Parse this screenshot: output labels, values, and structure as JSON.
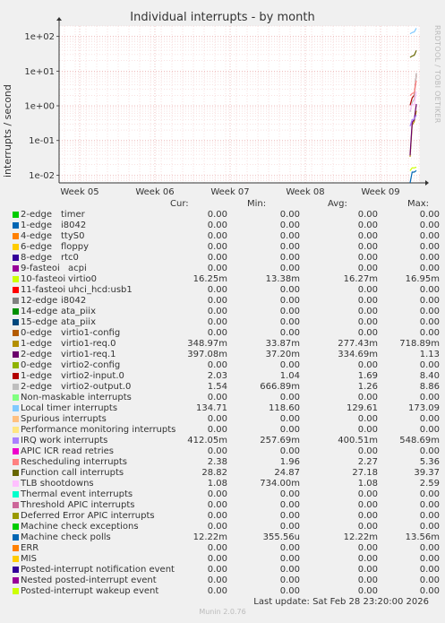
{
  "chart_data": {
    "type": "line",
    "title": "Individual interrupts - by month",
    "ylabel": "interrupts / second",
    "yscale": "log",
    "ylim": [
      0.006,
      200
    ],
    "yticks": [
      {
        "value": 100,
        "label": "1e+02"
      },
      {
        "value": 10,
        "label": "1e+01"
      },
      {
        "value": 1,
        "label": "1e+00"
      },
      {
        "value": 0.1,
        "label": "1e-01"
      },
      {
        "value": 0.01,
        "label": "1e-02"
      }
    ],
    "xticks": [
      "Week 05",
      "Week 06",
      "Week 07",
      "Week 08",
      "Week 09"
    ],
    "grid": true,
    "side_label": "RRDTOOL / TOBI OETIKER",
    "columns": [
      "Cur:",
      "Min:",
      "Avg:",
      "Max:"
    ],
    "series": [
      {
        "irq": "2-edge",
        "name": "timer",
        "color": "#00cc00",
        "cur": "0.00",
        "min": "0.00",
        "avg": "0.00",
        "max": "0.00"
      },
      {
        "irq": "1-edge",
        "name": "i8042",
        "color": "#0066b3",
        "cur": "0.00",
        "min": "0.00",
        "avg": "0.00",
        "max": "0.00"
      },
      {
        "irq": "4-edge",
        "name": "ttyS0",
        "color": "#ff8000",
        "cur": "0.00",
        "min": "0.00",
        "avg": "0.00",
        "max": "0.00"
      },
      {
        "irq": "6-edge",
        "name": "floppy",
        "color": "#ffcc00",
        "cur": "0.00",
        "min": "0.00",
        "avg": "0.00",
        "max": "0.00"
      },
      {
        "irq": "8-edge",
        "name": "rtc0",
        "color": "#330099",
        "cur": "0.00",
        "min": "0.00",
        "avg": "0.00",
        "max": "0.00"
      },
      {
        "irq": "9-fasteoi",
        "name": "acpi",
        "color": "#990099",
        "cur": "0.00",
        "min": "0.00",
        "avg": "0.00",
        "max": "0.00"
      },
      {
        "irq": "10-fasteoi",
        "name": "virtio0",
        "color": "#ccff00",
        "cur": "16.25m",
        "min": "13.38m",
        "avg": "16.27m",
        "max": "16.95m"
      },
      {
        "irq": "11-fasteoi",
        "name": "uhci_hcd:usb1",
        "color": "#ff0000",
        "cur": "0.00",
        "min": "0.00",
        "avg": "0.00",
        "max": "0.00"
      },
      {
        "irq": "12-edge",
        "name": "i8042",
        "color": "#808080",
        "cur": "0.00",
        "min": "0.00",
        "avg": "0.00",
        "max": "0.00"
      },
      {
        "irq": "14-edge",
        "name": "ata_piix",
        "color": "#008f00",
        "cur": "0.00",
        "min": "0.00",
        "avg": "0.00",
        "max": "0.00"
      },
      {
        "irq": "15-edge",
        "name": "ata_piix",
        "color": "#00487d",
        "cur": "0.00",
        "min": "0.00",
        "avg": "0.00",
        "max": "0.00"
      },
      {
        "irq": "0-edge",
        "name": "virtio1-config",
        "color": "#b35a00",
        "cur": "0.00",
        "min": "0.00",
        "avg": "0.00",
        "max": "0.00"
      },
      {
        "irq": "1-edge",
        "name": "virtio1-req.0",
        "color": "#b38f00",
        "cur": "348.97m",
        "min": "33.87m",
        "avg": "277.43m",
        "max": "718.89m"
      },
      {
        "irq": "2-edge",
        "name": "virtio1-req.1",
        "color": "#6b006b",
        "cur": "397.08m",
        "min": "37.20m",
        "avg": "334.69m",
        "max": "1.13"
      },
      {
        "irq": "0-edge",
        "name": "virtio2-config",
        "color": "#8fb300",
        "cur": "0.00",
        "min": "0.00",
        "avg": "0.00",
        "max": "0.00"
      },
      {
        "irq": "1-edge",
        "name": "virtio2-input.0",
        "color": "#b30000",
        "cur": "2.03",
        "min": "1.04",
        "avg": "1.69",
        "max": "8.40"
      },
      {
        "irq": "2-edge",
        "name": "virtio2-output.0",
        "color": "#bebebe",
        "cur": "1.54",
        "min": "666.89m",
        "avg": "1.26",
        "max": "8.86"
      },
      {
        "irq": "",
        "name": "Non-maskable interrupts",
        "color": "#80ff80",
        "cur": "0.00",
        "min": "0.00",
        "avg": "0.00",
        "max": "0.00"
      },
      {
        "irq": "",
        "name": "Local timer interrupts",
        "color": "#80c9ff",
        "cur": "134.71",
        "min": "118.60",
        "avg": "129.61",
        "max": "173.09"
      },
      {
        "irq": "",
        "name": "Spurious interrupts",
        "color": "#ffc080",
        "cur": "0.00",
        "min": "0.00",
        "avg": "0.00",
        "max": "0.00"
      },
      {
        "irq": "",
        "name": "Performance monitoring interrupts",
        "color": "#ffe680",
        "cur": "0.00",
        "min": "0.00",
        "avg": "0.00",
        "max": "0.00"
      },
      {
        "irq": "",
        "name": "IRQ work interrupts",
        "color": "#aa80ff",
        "cur": "412.05m",
        "min": "257.69m",
        "avg": "400.51m",
        "max": "548.69m"
      },
      {
        "irq": "",
        "name": "APIC ICR read retries",
        "color": "#ee00cc",
        "cur": "0.00",
        "min": "0.00",
        "avg": "0.00",
        "max": "0.00"
      },
      {
        "irq": "",
        "name": "Rescheduling interrupts",
        "color": "#ff8080",
        "cur": "2.38",
        "min": "1.96",
        "avg": "2.27",
        "max": "5.36"
      },
      {
        "irq": "",
        "name": "Function call interrupts",
        "color": "#666600",
        "cur": "28.82",
        "min": "24.87",
        "avg": "27.18",
        "max": "39.37"
      },
      {
        "irq": "",
        "name": "TLB shootdowns",
        "color": "#ffbfff",
        "cur": "1.08",
        "min": "734.00m",
        "avg": "1.08",
        "max": "2.59"
      },
      {
        "irq": "",
        "name": "Thermal event interrupts",
        "color": "#00ffcc",
        "cur": "0.00",
        "min": "0.00",
        "avg": "0.00",
        "max": "0.00"
      },
      {
        "irq": "",
        "name": "Threshold APIC interrupts",
        "color": "#cc6699",
        "cur": "0.00",
        "min": "0.00",
        "avg": "0.00",
        "max": "0.00"
      },
      {
        "irq": "",
        "name": "Deferred Error APIC interrupts",
        "color": "#999900",
        "cur": "0.00",
        "min": "0.00",
        "avg": "0.00",
        "max": "0.00"
      },
      {
        "irq": "",
        "name": "Machine check exceptions",
        "color": "#00cc00",
        "cur": "0.00",
        "min": "0.00",
        "avg": "0.00",
        "max": "0.00"
      },
      {
        "irq": "",
        "name": "Machine check polls",
        "color": "#0066b3",
        "cur": "12.22m",
        "min": "355.56u",
        "avg": "12.22m",
        "max": "13.56m"
      },
      {
        "irq": "",
        "name": "ERR",
        "color": "#ff8000",
        "cur": "0.00",
        "min": "0.00",
        "avg": "0.00",
        "max": "0.00"
      },
      {
        "irq": "",
        "name": "MIS",
        "color": "#ffcc00",
        "cur": "0.00",
        "min": "0.00",
        "avg": "0.00",
        "max": "0.00"
      },
      {
        "irq": "",
        "name": "Posted-interrupt notification event",
        "color": "#330099",
        "cur": "0.00",
        "min": "0.00",
        "avg": "0.00",
        "max": "0.00"
      },
      {
        "irq": "",
        "name": "Nested posted-interrupt event",
        "color": "#990099",
        "cur": "0.00",
        "min": "0.00",
        "avg": "0.00",
        "max": "0.00"
      },
      {
        "irq": "",
        "name": "Posted-interrupt wakeup event",
        "color": "#ccff00",
        "cur": "0.00",
        "min": "0.00",
        "avg": "0.00",
        "max": "0.00"
      }
    ],
    "last_update": "Last update: Sat Feb 28 23:20:00 2026",
    "footer": "Munin 2.0.76"
  }
}
